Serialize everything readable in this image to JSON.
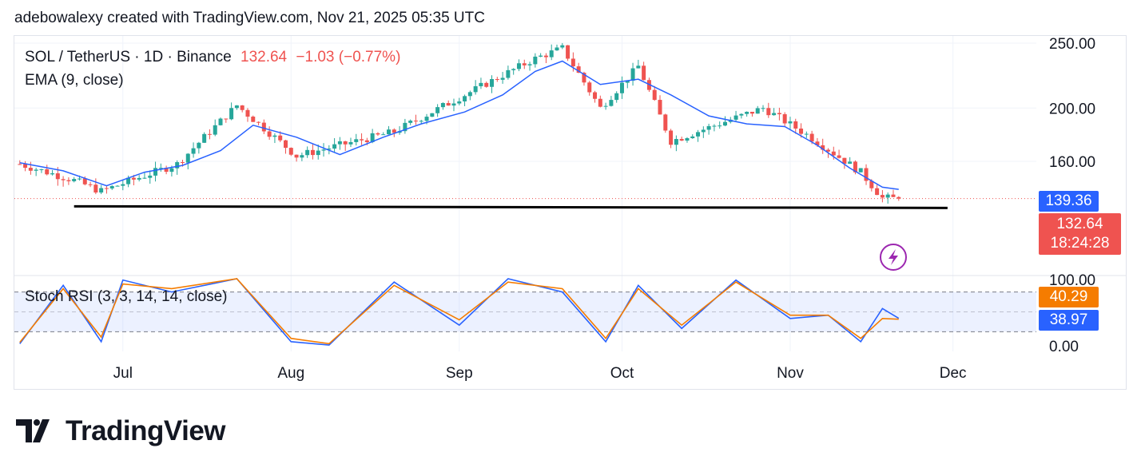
{
  "header": {
    "text": "adebowalexy created with TradingView.com, Nov 21, 2025 05:35 UTC"
  },
  "legend": {
    "symbol": "SOL / TetherUS · 1D · Binance",
    "price": "132.64",
    "change": "−1.03 (−0.77%)",
    "indicator": "EMA (9, close)",
    "stoch": "Stoch RSI (3, 3, 14, 14, close)"
  },
  "price_axis": [
    "250.00",
    "200.00",
    "160.00"
  ],
  "stoch_axis": [
    "100.00",
    "0.00"
  ],
  "tags": {
    "ema": "139.36",
    "last_price": "132.64",
    "countdown": "18:24:28",
    "stoch_k": "40.29",
    "stoch_d": "38.97"
  },
  "x_axis": [
    "Jul",
    "Aug",
    "Sep",
    "Oct",
    "Nov",
    "Dec"
  ],
  "logo": {
    "text": "TradingView"
  },
  "colors": {
    "up": "#26a69a",
    "down": "#ef5350",
    "ema": "#2962ff",
    "stoch_k": "#2962ff",
    "stoch_d": "#f57c00",
    "support": "#000000",
    "alert": "#9c27b0"
  },
  "icons": {
    "alert": "lightning-bolt-icon"
  },
  "chart_data": [
    {
      "type": "line",
      "title": "SOL / TetherUS · 1D · Binance",
      "series": [
        {
          "name": "EMA (9, close)",
          "x": [
            "Jun 12",
            "Jun 20",
            "Jun 28",
            "Jul 5",
            "Jul 12",
            "Jul 19",
            "Jul 25",
            "Aug 2",
            "Aug 10",
            "Aug 18",
            "Aug 25",
            "Sep 2",
            "Sep 9",
            "Sep 15",
            "Sep 20",
            "Sep 27",
            "Oct 4",
            "Oct 10",
            "Oct 17",
            "Oct 24",
            "Oct 31",
            "Nov 6",
            "Nov 12",
            "Nov 18",
            "Nov 21"
          ],
          "values": [
            159,
            153,
            142,
            152,
            157,
            168,
            187,
            178,
            165,
            178,
            188,
            197,
            210,
            228,
            236,
            218,
            222,
            210,
            194,
            188,
            186,
            172,
            155,
            141,
            139.36
          ]
        }
      ],
      "close_approx": {
        "x": [
          "Jun 12",
          "Jun 22",
          "Jun 27",
          "Jul 11",
          "Jul 22",
          "Aug 2",
          "Aug 20",
          "Sep 15",
          "Sep 20",
          "Sep 27",
          "Oct 4",
          "Oct 10",
          "Oct 27",
          "Nov 4",
          "Nov 14",
          "Nov 18",
          "Nov 21"
        ],
        "values": [
          158,
          146,
          138,
          158,
          202,
          164,
          182,
          238,
          246,
          200,
          232,
          175,
          200,
          180,
          152,
          133,
          132.64
        ]
      },
      "support_line": 127,
      "ylim": [
        100,
        256
      ],
      "y_ticks": [
        160,
        200,
        250
      ],
      "last_price": 132.64,
      "change": -1.03,
      "change_pct": -0.77
    },
    {
      "type": "line",
      "title": "Stoch RSI (3, 3, 14, 14, close)",
      "series": [
        {
          "name": "K",
          "x": [
            "Jun 12",
            "Jun 20",
            "Jun 27",
            "Jul 1",
            "Jul 10",
            "Jul 22",
            "Aug 1",
            "Aug 8",
            "Aug 20",
            "Sep 1",
            "Sep 10",
            "Sep 20",
            "Sep 28",
            "Oct 4",
            "Oct 12",
            "Oct 22",
            "Nov 1",
            "Nov 8",
            "Nov 14",
            "Nov 18",
            "Nov 21"
          ],
          "values": [
            2,
            90,
            5,
            98,
            80,
            100,
            5,
            0,
            95,
            30,
            100,
            80,
            5,
            90,
            25,
            98,
            40,
            45,
            5,
            55,
            40.29
          ]
        },
        {
          "name": "D",
          "x": [
            "Jun 12",
            "Jun 20",
            "Jun 27",
            "Jul 1",
            "Jul 10",
            "Jul 22",
            "Aug 1",
            "Aug 8",
            "Aug 20",
            "Sep 1",
            "Sep 10",
            "Sep 20",
            "Sep 28",
            "Oct 4",
            "Oct 12",
            "Oct 22",
            "Nov 1",
            "Nov 8",
            "Nov 14",
            "Nov 18",
            "Nov 21"
          ],
          "values": [
            4,
            85,
            12,
            92,
            85,
            100,
            10,
            2,
            90,
            38,
            95,
            85,
            10,
            85,
            30,
            95,
            45,
            45,
            10,
            40,
            38.97
          ]
        }
      ],
      "ylim": [
        0,
        100
      ],
      "bands": [
        20,
        80
      ]
    }
  ]
}
